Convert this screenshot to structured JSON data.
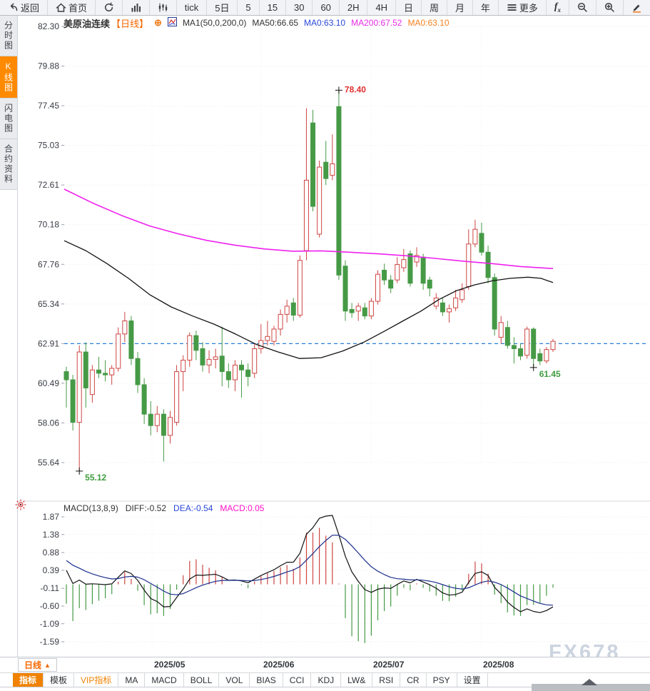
{
  "toolbar": {
    "items": [
      {
        "name": "back-button",
        "icon": "back-arrow",
        "label": "返回"
      },
      {
        "name": "home-button",
        "icon": "home",
        "label": "首页"
      },
      {
        "name": "refresh-button",
        "icon": "refresh",
        "label": ""
      },
      {
        "name": "timeshare-chart-button",
        "icon": "bar-chart",
        "label": ""
      },
      {
        "name": "kline-chart-button",
        "icon": "candles",
        "label": ""
      },
      {
        "name": "tick-button",
        "icon": "",
        "label": "tick"
      },
      {
        "name": "interval-5d-button",
        "icon": "",
        "label": "5日"
      },
      {
        "name": "interval-5-button",
        "icon": "",
        "label": "5"
      },
      {
        "name": "interval-15-button",
        "icon": "",
        "label": "15"
      },
      {
        "name": "interval-30-button",
        "icon": "",
        "label": "30"
      },
      {
        "name": "interval-60-button",
        "icon": "",
        "label": "60"
      },
      {
        "name": "interval-2h-button",
        "icon": "",
        "label": "2H"
      },
      {
        "name": "interval-4h-button",
        "icon": "",
        "label": "4H"
      },
      {
        "name": "interval-day-button",
        "icon": "",
        "label": "日"
      },
      {
        "name": "interval-week-button",
        "icon": "",
        "label": "周"
      },
      {
        "name": "interval-month-button",
        "icon": "",
        "label": "月"
      },
      {
        "name": "interval-year-button",
        "icon": "",
        "label": "年"
      },
      {
        "name": "more-button",
        "icon": "menu",
        "label": "更多"
      },
      {
        "name": "fx-indicator-button",
        "icon": "fx",
        "label": "fx"
      },
      {
        "name": "zoom-out-button",
        "icon": "zoom-out",
        "label": ""
      },
      {
        "name": "zoom-in-button",
        "icon": "zoom-in",
        "label": ""
      },
      {
        "name": "draw-button",
        "icon": "pencil",
        "label": ""
      }
    ]
  },
  "sidebar": {
    "items": [
      {
        "name": "timeshare",
        "label": "分时图",
        "active": false
      },
      {
        "name": "kline",
        "label": "K线图",
        "active": true
      },
      {
        "name": "lightning",
        "label": "闪电图",
        "active": false
      },
      {
        "name": "contract-info",
        "label": "合约资料",
        "active": false
      }
    ]
  },
  "main_header": {
    "symbol": "美原油连续",
    "period_tag": "【日线】",
    "ma_settings": "MA1(50,0,200,0)",
    "ma50": "MA50:66.65",
    "ma0_blue": "MA0:63.10",
    "ma200": "MA200:67.52",
    "ma0_orange": "MA0:63.10"
  },
  "macd_header": {
    "title": "MACD(13,8,9)",
    "diff": "DIFF:-0.52",
    "dea": "DEA:-0.54",
    "macd": "MACD:0.05"
  },
  "bottom": {
    "period_button": "日线",
    "period_button_arrow": "▲",
    "tabs": [
      {
        "name": "indicator",
        "label": "指标",
        "active": true,
        "vip": false
      },
      {
        "name": "template",
        "label": "模板",
        "active": false,
        "vip": false
      },
      {
        "name": "vip-indicator",
        "label": "VIP指标",
        "active": false,
        "vip": true
      },
      {
        "name": "ma",
        "label": "MA",
        "active": false,
        "vip": false
      },
      {
        "name": "macd",
        "label": "MACD",
        "active": false,
        "vip": false
      },
      {
        "name": "boll",
        "label": "BOLL",
        "active": false,
        "vip": false
      },
      {
        "name": "vol",
        "label": "VOL",
        "active": false,
        "vip": false
      },
      {
        "name": "bias",
        "label": "BIAS",
        "active": false,
        "vip": false
      },
      {
        "name": "cci",
        "label": "CCI",
        "active": false,
        "vip": false
      },
      {
        "name": "kdj",
        "label": "KDJ",
        "active": false,
        "vip": false
      },
      {
        "name": "lw",
        "label": "LW&",
        "active": false,
        "vip": false
      },
      {
        "name": "rsi",
        "label": "RSI",
        "active": false,
        "vip": false
      },
      {
        "name": "cr",
        "label": "CR",
        "active": false,
        "vip": false
      },
      {
        "name": "psy",
        "label": "PSY",
        "active": false,
        "vip": false
      },
      {
        "name": "settings",
        "label": "设置",
        "active": false,
        "vip": false
      }
    ]
  },
  "watermark": "FX678",
  "chart_data": {
    "type": "candlestick+macd",
    "title": "美原油连续 日线 (WTI crude continuous, daily)",
    "y_axis_labels": [
      82.3,
      79.88,
      77.45,
      75.03,
      72.61,
      70.18,
      67.76,
      65.34,
      62.91,
      60.49,
      58.06,
      55.64
    ],
    "macd_axis_labels": [
      1.87,
      1.38,
      0.88,
      0.39,
      -0.11,
      -0.6,
      -1.09,
      -1.59
    ],
    "x_axis_labels": [
      "2025/05",
      "2025/06",
      "2025/07",
      "2025/08"
    ],
    "last_price_line": 62.91,
    "ma50_last": 66.65,
    "ma200_last": 67.52,
    "macd_last": {
      "diff": -0.52,
      "dea": -0.54,
      "macd": 0.05
    },
    "annotations": [
      {
        "text": "78.40",
        "price": 78.4,
        "candle_index": 42,
        "color": "#e03030",
        "side": "above"
      },
      {
        "text": "55.12",
        "price": 55.12,
        "candle_index": 2,
        "color": "#3f9c3f",
        "side": "below"
      },
      {
        "text": "61.45",
        "price": 61.45,
        "candle_index": 72,
        "color": "#3f9c3f",
        "side": "below"
      }
    ],
    "candles": [
      [
        61.2,
        61.5,
        59.0,
        60.7
      ],
      [
        60.7,
        61.0,
        57.6,
        58.1
      ],
      [
        58.1,
        62.8,
        55.12,
        62.4
      ],
      [
        62.4,
        63.0,
        59.0,
        60.2
      ],
      [
        59.8,
        61.6,
        59.3,
        61.3
      ],
      [
        61.3,
        62.1,
        60.8,
        61.1
      ],
      [
        61.1,
        61.9,
        60.6,
        61.0
      ],
      [
        61.0,
        61.6,
        60.4,
        61.4
      ],
      [
        61.4,
        63.9,
        61.2,
        63.5
      ],
      [
        63.5,
        64.85,
        63.0,
        64.3
      ],
      [
        64.3,
        64.6,
        61.6,
        62.0
      ],
      [
        62.0,
        62.4,
        59.9,
        60.4
      ],
      [
        60.4,
        60.8,
        58.0,
        58.6
      ],
      [
        58.6,
        59.4,
        57.3,
        57.9
      ],
      [
        57.9,
        59.1,
        57.5,
        58.6
      ],
      [
        58.6,
        58.9,
        55.7,
        57.3
      ],
      [
        57.3,
        58.8,
        56.8,
        58.4
      ],
      [
        58.1,
        61.6,
        57.9,
        61.2
      ],
      [
        61.2,
        62.2,
        60.0,
        61.9
      ],
      [
        61.9,
        63.6,
        61.5,
        63.4
      ],
      [
        63.4,
        63.7,
        61.9,
        62.5
      ],
      [
        62.6,
        63.0,
        61.2,
        61.6
      ],
      [
        61.6,
        62.5,
        61.1,
        61.95
      ],
      [
        61.95,
        62.6,
        61.4,
        62.1
      ],
      [
        62.15,
        63.95,
        60.3,
        61.2
      ],
      [
        61.2,
        61.7,
        60.2,
        60.7
      ],
      [
        60.7,
        61.9,
        60.0,
        61.6
      ],
      [
        61.6,
        61.9,
        59.6,
        61.3
      ],
      [
        61.3,
        61.7,
        60.3,
        60.9
      ],
      [
        61.1,
        62.9,
        60.8,
        62.6
      ],
      [
        62.6,
        64.1,
        62.3,
        63.1
      ],
      [
        63.1,
        64.3,
        62.8,
        63.35
      ],
      [
        63.05,
        64.0,
        62.8,
        63.8
      ],
      [
        63.8,
        65.0,
        63.4,
        64.7
      ],
      [
        64.7,
        65.6,
        64.2,
        65.2
      ],
      [
        65.4,
        65.7,
        64.3,
        64.65
      ],
      [
        64.65,
        68.3,
        64.5,
        68.0
      ],
      [
        68.6,
        77.3,
        68.0,
        72.9
      ],
      [
        76.4,
        77.2,
        71.0,
        71.3
      ],
      [
        69.6,
        74.1,
        69.4,
        73.7
      ],
      [
        74.0,
        75.3,
        72.6,
        73.0
      ],
      [
        73.2,
        75.7,
        72.9,
        73.9
      ],
      [
        77.4,
        78.4,
        66.8,
        67.1
      ],
      [
        67.65,
        68.0,
        64.3,
        64.9
      ],
      [
        65.0,
        65.4,
        64.5,
        64.8
      ],
      [
        64.9,
        65.4,
        64.3,
        65.2
      ],
      [
        65.1,
        65.4,
        64.4,
        64.6
      ],
      [
        64.6,
        65.7,
        64.4,
        65.5
      ],
      [
        65.5,
        67.4,
        65.3,
        67.15
      ],
      [
        67.4,
        67.8,
        66.5,
        66.8
      ],
      [
        66.8,
        67.1,
        66.0,
        66.3
      ],
      [
        66.8,
        68.2,
        66.6,
        67.75
      ],
      [
        67.55,
        68.7,
        67.3,
        68.05
      ],
      [
        68.4,
        68.6,
        66.4,
        66.6
      ],
      [
        67.9,
        68.8,
        67.6,
        68.3
      ],
      [
        68.2,
        68.4,
        66.2,
        66.6
      ],
      [
        66.8,
        67.0,
        65.8,
        66.3
      ],
      [
        65.2,
        66.0,
        65.0,
        65.7
      ],
      [
        65.4,
        65.7,
        64.6,
        64.85
      ],
      [
        64.85,
        65.3,
        64.2,
        65.05
      ],
      [
        65.1,
        66.2,
        64.9,
        65.7
      ],
      [
        65.6,
        66.6,
        65.4,
        66.2
      ],
      [
        66.4,
        69.9,
        66.2,
        69.0
      ],
      [
        69.0,
        70.48,
        68.8,
        69.9
      ],
      [
        69.65,
        70.3,
        68.3,
        68.5
      ],
      [
        68.5,
        68.9,
        66.6,
        66.95
      ],
      [
        66.95,
        67.2,
        63.4,
        63.8
      ],
      [
        63.3,
        64.6,
        62.9,
        64.2
      ],
      [
        63.9,
        64.3,
        62.6,
        62.8
      ],
      [
        62.8,
        63.3,
        61.7,
        62.6
      ],
      [
        62.6,
        62.9,
        61.9,
        62.15
      ],
      [
        62.2,
        63.95,
        62.0,
        63.8
      ],
      [
        63.8,
        63.9,
        61.45,
        62.0
      ],
      [
        62.3,
        62.6,
        61.6,
        61.85
      ],
      [
        61.85,
        62.7,
        61.7,
        62.55
      ],
      [
        62.55,
        63.2,
        62.4,
        63.05
      ]
    ],
    "ma50_points": [
      [
        90,
        69.2
      ],
      [
        120,
        68.6
      ],
      [
        150,
        67.8
      ],
      [
        180,
        66.9
      ],
      [
        210,
        65.9
      ],
      [
        240,
        65.15
      ],
      [
        270,
        64.6
      ],
      [
        300,
        64.1
      ],
      [
        330,
        63.5
      ],
      [
        360,
        62.85
      ],
      [
        390,
        62.4
      ],
      [
        420,
        62.0
      ],
      [
        450,
        62.05
      ],
      [
        480,
        62.45
      ],
      [
        510,
        63.0
      ],
      [
        540,
        63.7
      ],
      [
        565,
        64.3
      ],
      [
        590,
        64.9
      ],
      [
        615,
        65.6
      ],
      [
        640,
        66.15
      ],
      [
        665,
        66.5
      ],
      [
        690,
        66.75
      ],
      [
        715,
        66.9
      ],
      [
        740,
        66.97
      ],
      [
        758,
        66.9
      ],
      [
        775,
        66.65
      ]
    ],
    "ma200_points": [
      [
        90,
        72.35
      ],
      [
        130,
        71.5
      ],
      [
        170,
        70.75
      ],
      [
        210,
        70.1
      ],
      [
        250,
        69.62
      ],
      [
        290,
        69.22
      ],
      [
        330,
        68.92
      ],
      [
        370,
        68.7
      ],
      [
        410,
        68.56
      ],
      [
        450,
        68.58
      ],
      [
        490,
        68.5
      ],
      [
        530,
        68.4
      ],
      [
        570,
        68.28
      ],
      [
        610,
        68.12
      ],
      [
        650,
        67.95
      ],
      [
        690,
        67.8
      ],
      [
        730,
        67.62
      ],
      [
        775,
        67.5
      ]
    ],
    "macd_prehistory_closes": [
      58.0,
      59.5,
      61.0,
      62.4,
      63.5,
      64.3,
      64.6,
      64.3,
      63.4,
      62.4,
      61.4
    ],
    "colors": {
      "up": "#cd4643",
      "down": "#469a46",
      "ma50": "#121212",
      "ma200": "#ee22ee",
      "diff_line": "#121212",
      "dea_line": "#1b2e8c",
      "last_price_dash": "#2a7fd4",
      "grid": "#e8eaee",
      "axis_text": "#383c44",
      "accent_orange": "#ff8a00"
    },
    "layout": {
      "grid": "dotted",
      "y_axis_side": "left",
      "months_x": [
        213,
        366,
        520,
        674
      ]
    }
  }
}
